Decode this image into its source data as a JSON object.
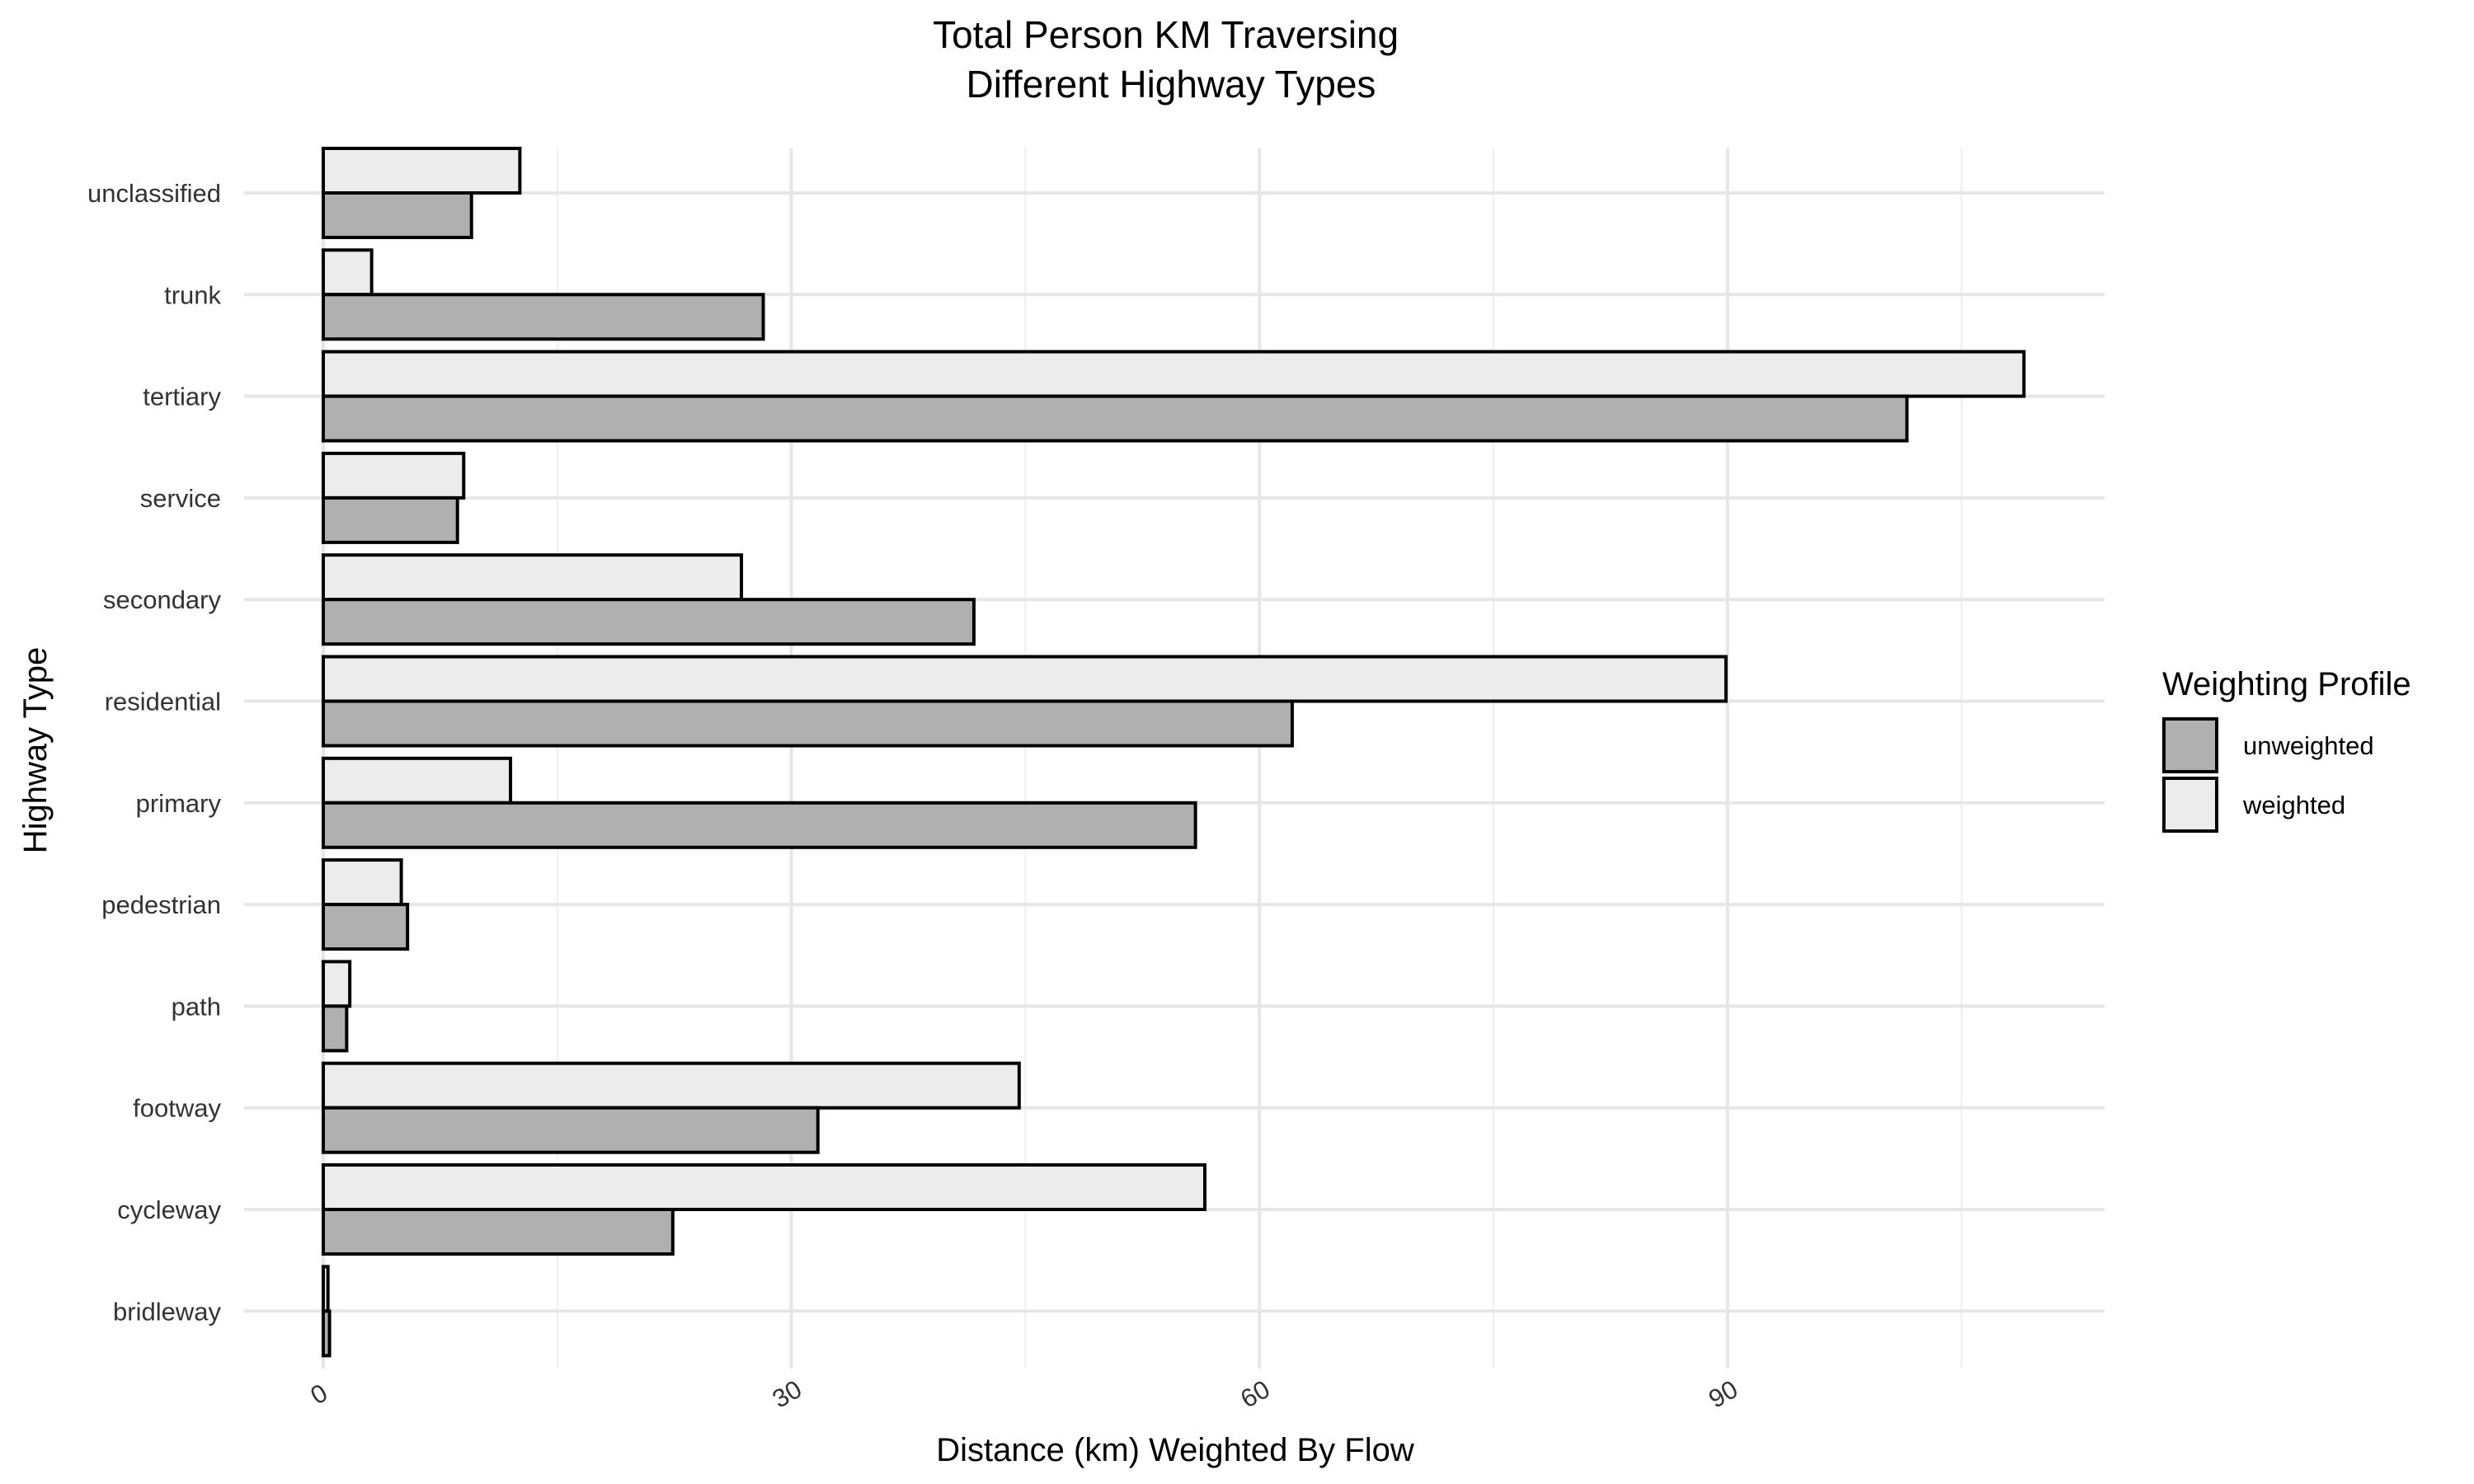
{
  "chart_data": {
    "type": "bar",
    "orientation": "horizontal",
    "title": "Total Person KM Traversing\nDifferent Highway Types",
    "xlabel": "Distance (km) Weighted By Flow",
    "ylabel": "Highway Type",
    "xlim": [
      -5,
      114
    ],
    "x_ticks": [
      0,
      30,
      60,
      90
    ],
    "grid": true,
    "categories": [
      "unclassified",
      "trunk",
      "tertiary",
      "service",
      "secondary",
      "residential",
      "primary",
      "pedestrian",
      "path",
      "footway",
      "cycleway",
      "bridleway"
    ],
    "series": [
      {
        "name": "unweighted",
        "color": "#b0b0b0",
        "values": [
          9.5,
          28.2,
          101.5,
          8.6,
          41.7,
          62.1,
          55.9,
          5.4,
          1.5,
          31.7,
          22.4,
          0.4
        ]
      },
      {
        "name": "weighted",
        "color": "#ececec",
        "values": [
          12.6,
          3.1,
          109.0,
          9.0,
          26.8,
          89.9,
          12.0,
          5.0,
          1.7,
          44.6,
          56.5,
          0.3
        ]
      }
    ],
    "legend": {
      "title": "Weighting Profile",
      "position": "right"
    }
  }
}
